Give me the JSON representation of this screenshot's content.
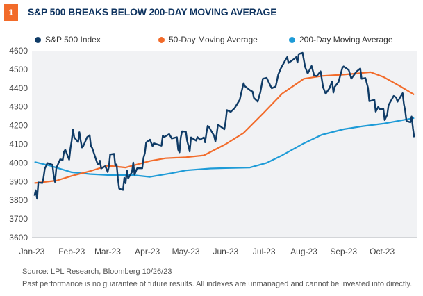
{
  "figure_number": "1",
  "chart_data": {
    "type": "line",
    "title": "S&P 500 BREAKS BELOW 200-DAY MOVING AVERAGE",
    "xlabel": "",
    "ylabel": "",
    "ylim": [
      3600,
      4600
    ],
    "yticks": [
      3600,
      3700,
      3800,
      3900,
      4000,
      4100,
      4200,
      4300,
      4400,
      4500,
      4600
    ],
    "xticks": [
      {
        "label": "Jan-23",
        "date": "2023-01-01"
      },
      {
        "label": "Feb-23",
        "date": "2023-02-01"
      },
      {
        "label": "Mar-23",
        "date": "2023-03-01"
      },
      {
        "label": "Apr-23",
        "date": "2023-04-01"
      },
      {
        "label": "May-23",
        "date": "2023-05-01"
      },
      {
        "label": "Jun-23",
        "date": "2023-06-01"
      },
      {
        "label": "Jul-23",
        "date": "2023-07-01"
      },
      {
        "label": "Aug-23",
        "date": "2023-08-01"
      },
      {
        "label": "Sep-23",
        "date": "2023-09-01"
      },
      {
        "label": "Oct-23",
        "date": "2023-10-01"
      }
    ],
    "xlim": [
      "2023-01-01",
      "2023-10-28"
    ],
    "grid": false,
    "legend": "top",
    "series": [
      {
        "name": "S&P 500 Index",
        "color": "#0f3b66",
        "points": [
          [
            "2023-01-03",
            3824
          ],
          [
            "2023-01-04",
            3853
          ],
          [
            "2023-01-05",
            3808
          ],
          [
            "2023-01-06",
            3895
          ],
          [
            "2023-01-09",
            3892
          ],
          [
            "2023-01-10",
            3919
          ],
          [
            "2023-01-11",
            3969
          ],
          [
            "2023-01-12",
            3983
          ],
          [
            "2023-01-13",
            3999
          ],
          [
            "2023-01-17",
            3990
          ],
          [
            "2023-01-18",
            3928
          ],
          [
            "2023-01-19",
            3898
          ],
          [
            "2023-01-20",
            3972
          ],
          [
            "2023-01-23",
            4019
          ],
          [
            "2023-01-25",
            4016
          ],
          [
            "2023-01-26",
            4060
          ],
          [
            "2023-01-27",
            4070
          ],
          [
            "2023-01-30",
            4017
          ],
          [
            "2023-01-31",
            4077
          ],
          [
            "2023-02-01",
            4119
          ],
          [
            "2023-02-02",
            4179
          ],
          [
            "2023-02-03",
            4136
          ],
          [
            "2023-02-06",
            4111
          ],
          [
            "2023-02-07",
            4164
          ],
          [
            "2023-02-08",
            4118
          ],
          [
            "2023-02-09",
            4082
          ],
          [
            "2023-02-10",
            4090
          ],
          [
            "2023-02-13",
            4137
          ],
          [
            "2023-02-15",
            4148
          ],
          [
            "2023-02-16",
            4090
          ],
          [
            "2023-02-17",
            4079
          ],
          [
            "2023-02-21",
            3997
          ],
          [
            "2023-02-22",
            3991
          ],
          [
            "2023-02-23",
            4012
          ],
          [
            "2023-02-24",
            3970
          ],
          [
            "2023-02-27",
            3982
          ],
          [
            "2023-02-28",
            3970
          ],
          [
            "2023-03-01",
            3951
          ],
          [
            "2023-03-02",
            3981
          ],
          [
            "2023-03-03",
            4045
          ],
          [
            "2023-03-06",
            4048
          ],
          [
            "2023-03-07",
            3986
          ],
          [
            "2023-03-08",
            3992
          ],
          [
            "2023-03-09",
            3918
          ],
          [
            "2023-03-10",
            3862
          ],
          [
            "2023-03-13",
            3855
          ],
          [
            "2023-03-14",
            3920
          ],
          [
            "2023-03-15",
            3891
          ],
          [
            "2023-03-16",
            3960
          ],
          [
            "2023-03-17",
            3917
          ],
          [
            "2023-03-20",
            3951
          ],
          [
            "2023-03-21",
            4002
          ],
          [
            "2023-03-22",
            3937
          ],
          [
            "2023-03-24",
            3971
          ],
          [
            "2023-03-28",
            3971
          ],
          [
            "2023-03-29",
            4028
          ],
          [
            "2023-03-30",
            4051
          ],
          [
            "2023-03-31",
            4109
          ],
          [
            "2023-04-03",
            4124
          ],
          [
            "2023-04-05",
            4090
          ],
          [
            "2023-04-06",
            4105
          ],
          [
            "2023-04-12",
            4092
          ],
          [
            "2023-04-13",
            4146
          ],
          [
            "2023-04-14",
            4138
          ],
          [
            "2023-04-18",
            4154
          ],
          [
            "2023-04-20",
            4130
          ],
          [
            "2023-04-24",
            4137
          ],
          [
            "2023-04-25",
            4071
          ],
          [
            "2023-04-26",
            4056
          ],
          [
            "2023-04-27",
            4135
          ],
          [
            "2023-04-28",
            4169
          ],
          [
            "2023-05-01",
            4167
          ],
          [
            "2023-05-02",
            4119
          ],
          [
            "2023-05-03",
            4091
          ],
          [
            "2023-05-04",
            4061
          ],
          [
            "2023-05-05",
            4136
          ],
          [
            "2023-05-09",
            4119
          ],
          [
            "2023-05-10",
            4138
          ],
          [
            "2023-05-12",
            4124
          ],
          [
            "2023-05-15",
            4136
          ],
          [
            "2023-05-16",
            4110
          ],
          [
            "2023-05-17",
            4158
          ],
          [
            "2023-05-18",
            4198
          ],
          [
            "2023-05-19",
            4192
          ],
          [
            "2023-05-23",
            4145
          ],
          [
            "2023-05-24",
            4115
          ],
          [
            "2023-05-25",
            4151
          ],
          [
            "2023-05-26",
            4205
          ],
          [
            "2023-05-31",
            4180
          ],
          [
            "2023-06-01",
            4221
          ],
          [
            "2023-06-02",
            4282
          ],
          [
            "2023-06-05",
            4273
          ],
          [
            "2023-06-08",
            4293
          ],
          [
            "2023-06-12",
            4338
          ],
          [
            "2023-06-13",
            4369
          ],
          [
            "2023-06-15",
            4426
          ],
          [
            "2023-06-16",
            4410
          ],
          [
            "2023-06-20",
            4389
          ],
          [
            "2023-06-22",
            4381
          ],
          [
            "2023-06-23",
            4348
          ],
          [
            "2023-06-26",
            4328
          ],
          [
            "2023-06-28",
            4376
          ],
          [
            "2023-06-30",
            4450
          ],
          [
            "2023-07-03",
            4455
          ],
          [
            "2023-07-06",
            4411
          ],
          [
            "2023-07-07",
            4399
          ],
          [
            "2023-07-10",
            4409
          ],
          [
            "2023-07-12",
            4472
          ],
          [
            "2023-07-14",
            4505
          ],
          [
            "2023-07-18",
            4555
          ],
          [
            "2023-07-19",
            4566
          ],
          [
            "2023-07-20",
            4535
          ],
          [
            "2023-07-24",
            4554
          ],
          [
            "2023-07-26",
            4566
          ],
          [
            "2023-07-27",
            4537
          ],
          [
            "2023-07-28",
            4582
          ],
          [
            "2023-07-31",
            4589
          ],
          [
            "2023-08-02",
            4513
          ],
          [
            "2023-08-04",
            4478
          ],
          [
            "2023-08-07",
            4518
          ],
          [
            "2023-08-09",
            4468
          ],
          [
            "2023-08-11",
            4464
          ],
          [
            "2023-08-14",
            4490
          ],
          [
            "2023-08-16",
            4404
          ],
          [
            "2023-08-18",
            4370
          ],
          [
            "2023-08-21",
            4400
          ],
          [
            "2023-08-23",
            4436
          ],
          [
            "2023-08-24",
            4376
          ],
          [
            "2023-08-25",
            4406
          ],
          [
            "2023-08-28",
            4433
          ],
          [
            "2023-08-31",
            4508
          ],
          [
            "2023-09-01",
            4516
          ],
          [
            "2023-09-05",
            4497
          ],
          [
            "2023-09-07",
            4451
          ],
          [
            "2023-09-11",
            4488
          ],
          [
            "2023-09-14",
            4505
          ],
          [
            "2023-09-15",
            4450
          ],
          [
            "2023-09-18",
            4454
          ],
          [
            "2023-09-20",
            4402
          ],
          [
            "2023-09-21",
            4330
          ],
          [
            "2023-09-25",
            4337
          ],
          [
            "2023-09-26",
            4274
          ],
          [
            "2023-09-28",
            4300
          ],
          [
            "2023-09-29",
            4288
          ],
          [
            "2023-10-02",
            4289
          ],
          [
            "2023-10-03",
            4229
          ],
          [
            "2023-10-05",
            4258
          ],
          [
            "2023-10-06",
            4309
          ],
          [
            "2023-10-10",
            4358
          ],
          [
            "2023-10-12",
            4349
          ],
          [
            "2023-10-13",
            4327
          ],
          [
            "2023-10-17",
            4373
          ],
          [
            "2023-10-18",
            4314
          ],
          [
            "2023-10-19",
            4278
          ],
          [
            "2023-10-20",
            4224
          ],
          [
            "2023-10-23",
            4217
          ],
          [
            "2023-10-24",
            4248
          ],
          [
            "2023-10-25",
            4186
          ],
          [
            "2023-10-26",
            4137
          ]
        ]
      },
      {
        "name": "50-Day Moving Average",
        "color": "#f26b2a",
        "points": [
          [
            "2023-01-03",
            3892
          ],
          [
            "2023-01-20",
            3905
          ],
          [
            "2023-02-01",
            3930
          ],
          [
            "2023-02-15",
            3955
          ],
          [
            "2023-03-01",
            3985
          ],
          [
            "2023-03-15",
            3975
          ],
          [
            "2023-04-03",
            4010
          ],
          [
            "2023-04-15",
            4025
          ],
          [
            "2023-05-01",
            4030
          ],
          [
            "2023-05-15",
            4040
          ],
          [
            "2023-06-01",
            4100
          ],
          [
            "2023-06-15",
            4160
          ],
          [
            "2023-07-01",
            4270
          ],
          [
            "2023-07-15",
            4370
          ],
          [
            "2023-08-01",
            4450
          ],
          [
            "2023-08-15",
            4465
          ],
          [
            "2023-09-01",
            4472
          ],
          [
            "2023-09-22",
            4485
          ],
          [
            "2023-10-02",
            4460
          ],
          [
            "2023-10-15",
            4410
          ],
          [
            "2023-10-26",
            4365
          ]
        ]
      },
      {
        "name": "200-Day Moving Average",
        "color": "#1e9bd7",
        "points": [
          [
            "2023-01-03",
            4005
          ],
          [
            "2023-01-15",
            3985
          ],
          [
            "2023-02-01",
            3950
          ],
          [
            "2023-02-15",
            3940
          ],
          [
            "2023-03-01",
            3935
          ],
          [
            "2023-03-20",
            3935
          ],
          [
            "2023-04-03",
            3925
          ],
          [
            "2023-04-20",
            3945
          ],
          [
            "2023-05-01",
            3960
          ],
          [
            "2023-05-20",
            3970
          ],
          [
            "2023-06-01",
            3972
          ],
          [
            "2023-06-20",
            3975
          ],
          [
            "2023-07-03",
            4000
          ],
          [
            "2023-07-15",
            4040
          ],
          [
            "2023-08-01",
            4105
          ],
          [
            "2023-08-15",
            4150
          ],
          [
            "2023-09-01",
            4180
          ],
          [
            "2023-09-15",
            4195
          ],
          [
            "2023-10-02",
            4210
          ],
          [
            "2023-10-26",
            4240
          ]
        ]
      }
    ]
  },
  "footer": {
    "source": "Source:  LPL Research, Bloomberg  10/26/23",
    "disclaimer": "Past performance is no guarantee of future results. All indexes are unmanaged and cannot be invested into directly."
  }
}
